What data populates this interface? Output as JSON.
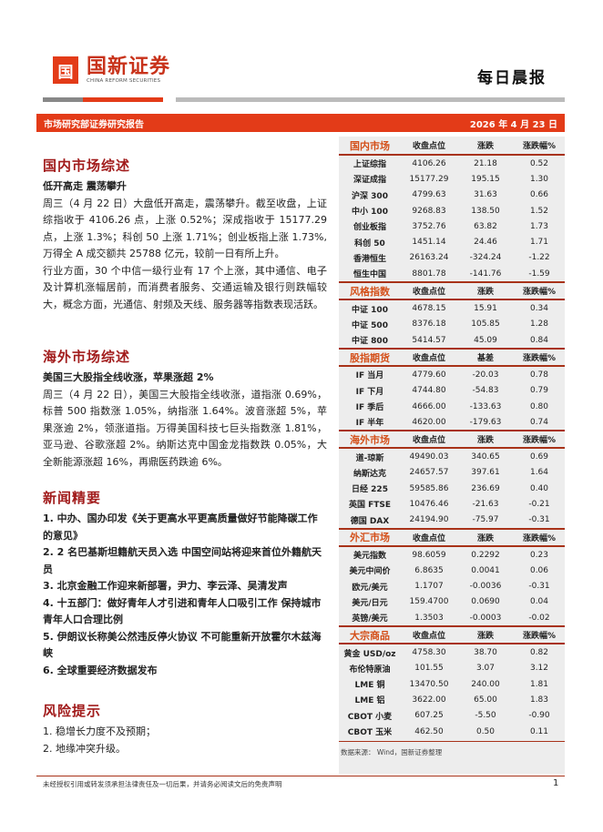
{
  "header": {
    "logo_cn": "国新证券",
    "logo_en": "CHINA REFORM SECURITIES",
    "logo_mark": "国新",
    "doc_title": "每日晨报",
    "band_left": "市场研究部证券研究报告",
    "band_date": "2026 年 4 月 23 日"
  },
  "domestic": {
    "title": "国内市场综述",
    "subtitle": "低开高走 震荡攀升",
    "paras": [
      "周三（4 月 22 日）大盘低开高走，震荡攀升。截至收盘，上证综指收于 4106.26 点，上涨 0.52%；深成指收于 15177.29 点，上涨 1.3%；科创 50 上涨 1.71%；创业板指上涨 1.73%,万得全 A 成交额共 25788 亿元，较前一日有所上升。",
      "行业方面，30 个中信一级行业有 17 个上涨，其中通信、电子及计算机涨幅居前，而消费者服务、交通运输及银行则跌幅较大，概念方面，光通信、射频及天线、服务器等指数表现活跃。"
    ]
  },
  "overseas": {
    "title": "海外市场综述",
    "subtitle": "美国三大股指全线收涨，苹果涨超 2%",
    "para": "周三（4 月 22 日），美国三大股指全线收涨，道指涨 0.69%，标普 500 指数涨 1.05%，纳指涨 1.64%。波音涨超 5%，苹果涨逾 2%，领涨道指。万得美国科技七巨头指数涨 1.81%，亚马逊、谷歌涨超 2%。纳斯达克中国金龙指数跌 0.05%，大全新能源涨超 16%，再鼎医药跌逾 6%。"
  },
  "news": {
    "title": "新闻精要",
    "items": [
      "1. 中办、国办印发《关于更高水平更高质量做好节能降碳工作的意见》",
      "2. 2 名巴基斯坦籍航天员入选 中国空间站将迎来首位外籍航天员",
      "3. 北京金融工作迎来新部署，尹力、李云泽、吴清发声",
      "4. 十五部门：做好青年人才引进和青年人口吸引工作 保持城市青年人口合理比例",
      "5. 伊朗议长称美公然违反停火协议 不可能重新开放霍尔木兹海峡",
      "6. 全球重要经济数据发布"
    ]
  },
  "risk": {
    "title": "风险提示",
    "items": [
      "1. 稳增长力度不及预期；",
      "2. 地缘冲突升级。"
    ]
  },
  "tables": [
    {
      "headers": [
        "国内市场",
        "收盘点位",
        "涨跌",
        "涨跌幅%"
      ],
      "rows": [
        [
          "上证综指",
          "4106.26",
          "21.18",
          "0.52"
        ],
        [
          "深证成指",
          "15177.29",
          "195.15",
          "1.30"
        ],
        [
          "沪深 300",
          "4799.63",
          "31.63",
          "0.66"
        ],
        [
          "中小 100",
          "9268.83",
          "138.50",
          "1.52"
        ],
        [
          "创业板指",
          "3752.76",
          "63.82",
          "1.73"
        ],
        [
          "科创 50",
          "1451.14",
          "24.46",
          "1.71"
        ],
        [
          "香港恒生",
          "26163.24",
          "-324.24",
          "-1.22"
        ],
        [
          "恒生中国",
          "8801.78",
          "-141.76",
          "-1.59"
        ]
      ]
    },
    {
      "headers": [
        "风格指数",
        "收盘点位",
        "涨跌",
        "涨跌幅%"
      ],
      "rows": [
        [
          "中证 100",
          "4678.15",
          "15.91",
          "0.34"
        ],
        [
          "中证 500",
          "8376.18",
          "105.85",
          "1.28"
        ],
        [
          "中证 800",
          "5414.57",
          "45.09",
          "0.84"
        ]
      ]
    },
    {
      "headers": [
        "股指期货",
        "收盘点位",
        "基差",
        "涨跌幅%"
      ],
      "rows": [
        [
          "IF 当月",
          "4779.60",
          "-20.03",
          "0.78"
        ],
        [
          "IF 下月",
          "4744.80",
          "-54.83",
          "0.79"
        ],
        [
          "IF 季后",
          "4666.00",
          "-133.63",
          "0.80"
        ],
        [
          "IF 半年",
          "4620.00",
          "-179.63",
          "0.74"
        ]
      ]
    },
    {
      "headers": [
        "海外市场",
        "收盘点位",
        "涨跌",
        "涨跌幅%"
      ],
      "rows": [
        [
          "道-琼斯",
          "49490.03",
          "340.65",
          "0.69"
        ],
        [
          "纳斯达克",
          "24657.57",
          "397.61",
          "1.64"
        ],
        [
          "日经 225",
          "59585.86",
          "236.69",
          "0.40"
        ],
        [
          "英国 FTSE",
          "10476.46",
          "-21.63",
          "-0.21"
        ],
        [
          "德国 DAX",
          "24194.90",
          "-75.97",
          "-0.31"
        ]
      ]
    },
    {
      "headers": [
        "外汇市场",
        "收盘点位",
        "涨跌",
        "涨跌幅%"
      ],
      "rows": [
        [
          "美元指数",
          "98.6059",
          "0.2292",
          "0.23"
        ],
        [
          "美元中间价",
          "6.8635",
          "0.0041",
          "0.06"
        ],
        [
          "欧元/美元",
          "1.1707",
          "-0.0036",
          "-0.31"
        ],
        [
          "美元/日元",
          "159.4700",
          "0.0690",
          "0.04"
        ],
        [
          "英镑/美元",
          "1.3503",
          "-0.0003",
          "-0.02"
        ]
      ]
    },
    {
      "headers": [
        "大宗商品",
        "收盘点位",
        "涨跌",
        "涨跌幅%"
      ],
      "rows": [
        [
          "黄金 USD/oz",
          "4758.30",
          "38.70",
          "0.82"
        ],
        [
          "布伦特原油",
          "101.55",
          "3.07",
          "3.12"
        ],
        [
          "LME 铜",
          "13470.50",
          "240.00",
          "1.81"
        ],
        [
          "LME 铝",
          "3622.00",
          "65.00",
          "1.83"
        ],
        [
          "CBOT 小麦",
          "607.25",
          "-5.50",
          "-0.90"
        ],
        [
          "CBOT 玉米",
          "462.50",
          "0.50",
          "0.11"
        ]
      ]
    }
  ],
  "source": "数据来源： Wind，国新证券整理",
  "footer": {
    "disclaimer": "未经授权引用或转发须承担法律责任及一切后果，并请务必阅读文后的免责声明",
    "page": "1"
  },
  "colors": {
    "brand_red": "#e33b18",
    "title_red": "#a11b1b",
    "panel_bg": "#ededed"
  }
}
